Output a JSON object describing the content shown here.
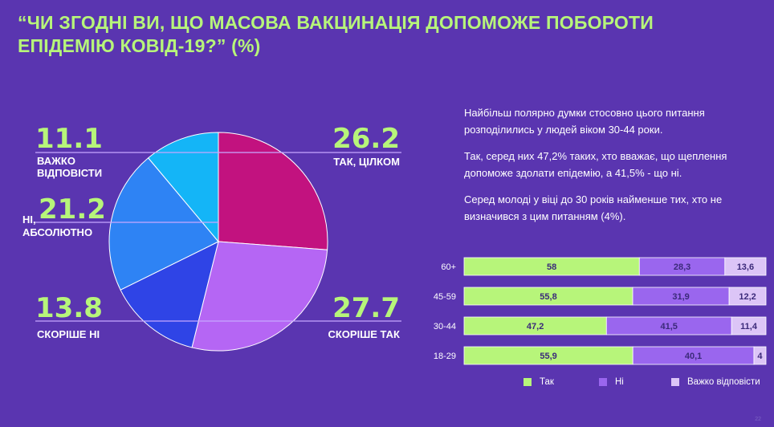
{
  "title": "“ЧИ ЗГОДНІ ВИ, ЩО МАСОВА ВАКЦИНАЦІЯ ДОПОМОЖЕ ПОБОРОТИ ЕПІДЕМІЮ КОВІД-19?” (%)",
  "colors": {
    "background": "#5a35b0",
    "accent": "#b7f57a",
    "pie_tak_tsilkom": "#c2127f",
    "pie_skorishe_tak": "#b566f4",
    "pie_skorishe_ni": "#2f44e6",
    "pie_ni_absoliutno": "#2e83f4",
    "pie_vazhko": "#14b5f7",
    "bar_tak": "#b7f57a",
    "bar_ni": "#9a66ee",
    "bar_vazhko": "#dcc5f7"
  },
  "pie_labels": {
    "tak_tsilkom": {
      "value": "26.2",
      "label": "ТАК, ЦІЛКОМ"
    },
    "skorishe_tak": {
      "value": "27.7",
      "label": "СКОРІШЕ ТАК"
    },
    "skorishe_ni": {
      "value": "13.8",
      "label": "СКОРІШЕ НІ"
    },
    "ni_absoliutno": {
      "value": "21.2",
      "label_line1": "НІ,",
      "label_line2": "АБСОЛЮТНО"
    },
    "vazhko": {
      "value": "11.1",
      "label_line1": "ВАЖКО",
      "label_line2": "ВІДПОВІСТИ"
    }
  },
  "description": [
    "Найбільш полярно думки стосовно цього питання розподілились у людей віком 30-44 роки.",
    "Так, серед них 47,2% таких, хто вважає, що щеплення допоможе здолати епідемію, а 41,5% - що ні.",
    "Серед молоді у віці до 30 років найменше тих, хто не визначився з цим питанням (4%)."
  ],
  "legend": {
    "tak": "Так",
    "ni": "Ні",
    "vazhko": "Важко відповісти"
  },
  "page_number": "22",
  "chart_data": [
    {
      "type": "pie",
      "title": "“ЧИ ЗГОДНІ ВИ, ЩО МАСОВА ВАКЦИНАЦІЯ ДОПОМОЖЕ ПОБОРОТИ ЕПІДЕМІЮ КОВІД-19?” (%)",
      "slices": [
        {
          "label": "ТАК, ЦІЛКОМ",
          "value": 26.2,
          "color": "#c2127f"
        },
        {
          "label": "СКОРІШЕ ТАК",
          "value": 27.7,
          "color": "#b566f4"
        },
        {
          "label": "СКОРІШЕ НІ",
          "value": 13.8,
          "color": "#2f44e6"
        },
        {
          "label": "НІ, АБСОЛЮТНО",
          "value": 21.2,
          "color": "#2e83f4"
        },
        {
          "label": "ВАЖКО ВІДПОВІСТИ",
          "value": 11.1,
          "color": "#14b5f7"
        }
      ]
    },
    {
      "type": "bar",
      "orientation": "horizontal",
      "stacked": true,
      "categories": [
        "60+",
        "45-59",
        "30-44",
        "18-29"
      ],
      "series": [
        {
          "name": "Так",
          "color": "#b7f57a",
          "values": [
            58,
            55.8,
            47.2,
            55.9
          ],
          "labels": [
            "58",
            "55,8",
            "47,2",
            "55,9"
          ]
        },
        {
          "name": "Ні",
          "color": "#9a66ee",
          "values": [
            28.3,
            31.9,
            41.5,
            40.1
          ],
          "labels": [
            "28,3",
            "31,9",
            "41,5",
            "40,1"
          ]
        },
        {
          "name": "Важко відповісти",
          "color": "#dcc5f7",
          "values": [
            13.6,
            12.2,
            11.4,
            4
          ],
          "labels": [
            "13,6",
            "12,2",
            "11,4",
            "4"
          ]
        }
      ],
      "legend_position": "bottom"
    }
  ]
}
